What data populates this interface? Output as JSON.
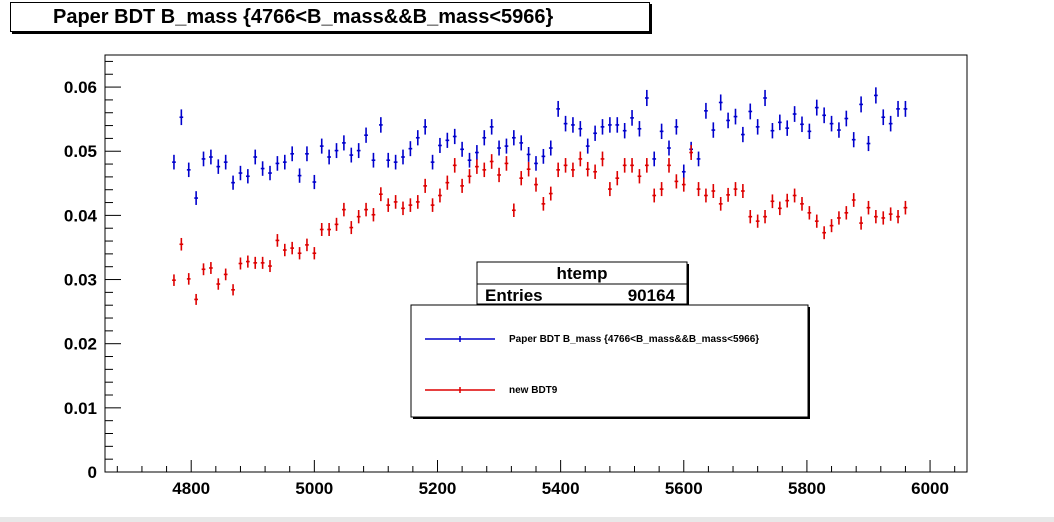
{
  "title": "Paper BDT B_mass {4766<B_mass&&B_mass<5966}",
  "stats_box": {
    "name": "htemp",
    "entries_label": "Entries",
    "entries_value": "90164"
  },
  "legend": {
    "placement": "center-right",
    "entries": [
      {
        "label": "Paper BDT B_mass {4766<B_mass&&B_mass<5966}",
        "color": "#0000cc"
      },
      {
        "label": "new BDT9",
        "color": "#dd0000"
      }
    ]
  },
  "chart_data": {
    "type": "scatter",
    "title": "Paper BDT B_mass {4766<B_mass&&B_mass<5966}",
    "xlabel": "",
    "ylabel": "",
    "xlim": [
      4660,
      6060
    ],
    "ylim": [
      0,
      0.065
    ],
    "x_ticks": [
      "4800",
      "5000",
      "5200",
      "5400",
      "5600",
      "5800",
      "6000"
    ],
    "y_ticks": [
      "0",
      "0.01",
      "0.02",
      "0.03",
      "0.04",
      "0.05",
      "0.06"
    ],
    "grid": false,
    "bin_width": 12,
    "x": [
      4772,
      4784,
      4796,
      4808,
      4820,
      4832,
      4844,
      4856,
      4868,
      4880,
      4892,
      4904,
      4916,
      4928,
      4940,
      4952,
      4964,
      4976,
      4988,
      5000,
      5012,
      5024,
      5036,
      5048,
      5060,
      5072,
      5084,
      5096,
      5108,
      5120,
      5132,
      5144,
      5156,
      5168,
      5180,
      5192,
      5204,
      5216,
      5228,
      5240,
      5252,
      5264,
      5276,
      5288,
      5300,
      5312,
      5324,
      5336,
      5348,
      5360,
      5372,
      5384,
      5396,
      5408,
      5420,
      5432,
      5444,
      5456,
      5468,
      5480,
      5492,
      5504,
      5516,
      5528,
      5540,
      5552,
      5564,
      5576,
      5588,
      5600,
      5612,
      5624,
      5636,
      5648,
      5660,
      5672,
      5684,
      5696,
      5708,
      5720,
      5732,
      5744,
      5756,
      5768,
      5780,
      5792,
      5804,
      5816,
      5828,
      5840,
      5852,
      5864,
      5876,
      5888,
      5900,
      5912,
      5924,
      5936,
      5948,
      5960
    ],
    "series": [
      {
        "name": "Paper BDT B_mass {4766<B_mass&&B_mass<5966}",
        "color": "#0000cc",
        "y": [
          0.0483,
          0.0553,
          0.0471,
          0.0427,
          0.0488,
          0.0491,
          0.0476,
          0.0483,
          0.0451,
          0.0466,
          0.0461,
          0.0491,
          0.0473,
          0.0466,
          0.0481,
          0.0483,
          0.0496,
          0.0462,
          0.0496,
          0.0452,
          0.0508,
          0.0491,
          0.0501,
          0.0513,
          0.0494,
          0.0501,
          0.0525,
          0.0486,
          0.0541,
          0.0486,
          0.0483,
          0.0491,
          0.0504,
          0.0521,
          0.0538,
          0.0483,
          0.0509,
          0.0517,
          0.0523,
          0.0503,
          0.0486,
          0.0498,
          0.0521,
          0.0538,
          0.0505,
          0.0508,
          0.0521,
          0.0513,
          0.0495,
          0.0481,
          0.0492,
          0.0505,
          0.0566,
          0.0543,
          0.0541,
          0.0535,
          0.0508,
          0.0528,
          0.0538,
          0.0541,
          0.0541,
          0.0532,
          0.0552,
          0.0535,
          0.0583,
          0.0488,
          0.0531,
          0.0505,
          0.0538,
          0.0468,
          0.0503,
          0.0488,
          0.0563,
          0.0533,
          0.0576,
          0.0548,
          0.0554,
          0.0526,
          0.0562,
          0.0538,
          0.0583,
          0.0532,
          0.0545,
          0.0536,
          0.0558,
          0.0542,
          0.0531,
          0.0568,
          0.0556,
          0.0543,
          0.0533,
          0.0551,
          0.0518,
          0.0573,
          0.0512,
          0.0587,
          0.0553,
          0.0543,
          0.0566,
          0.0566
        ]
      },
      {
        "name": "new BDT9",
        "color": "#dd0000",
        "y": [
          0.0299,
          0.0355,
          0.0301,
          0.0269,
          0.0316,
          0.0318,
          0.0293,
          0.0308,
          0.0284,
          0.0325,
          0.0328,
          0.0326,
          0.0326,
          0.0321,
          0.0361,
          0.0346,
          0.0349,
          0.0341,
          0.0354,
          0.0341,
          0.0378,
          0.0378,
          0.0386,
          0.0409,
          0.0381,
          0.0398,
          0.0409,
          0.0401,
          0.0433,
          0.0416,
          0.0421,
          0.0411,
          0.0416,
          0.0421,
          0.0446,
          0.0416,
          0.0431,
          0.0451,
          0.0478,
          0.0446,
          0.0461,
          0.0476,
          0.0471,
          0.0484,
          0.0463,
          0.0481,
          0.0408,
          0.0458,
          0.0472,
          0.0448,
          0.0418,
          0.0434,
          0.0471,
          0.0478,
          0.0471,
          0.0488,
          0.0472,
          0.0468,
          0.0488,
          0.0441,
          0.0458,
          0.0478,
          0.0478,
          0.0461,
          0.0478,
          0.0431,
          0.0441,
          0.0478,
          0.0453,
          0.0448,
          0.0498,
          0.0441,
          0.0431,
          0.0438,
          0.0418,
          0.0432,
          0.0441,
          0.0438,
          0.0398,
          0.0391,
          0.0398,
          0.0422,
          0.0411,
          0.0423,
          0.0431,
          0.0418,
          0.0404,
          0.0391,
          0.0373,
          0.0384,
          0.0396,
          0.0404,
          0.0424,
          0.0388,
          0.0412,
          0.0398,
          0.0396,
          0.0402,
          0.0398,
          0.0412
        ]
      }
    ]
  }
}
